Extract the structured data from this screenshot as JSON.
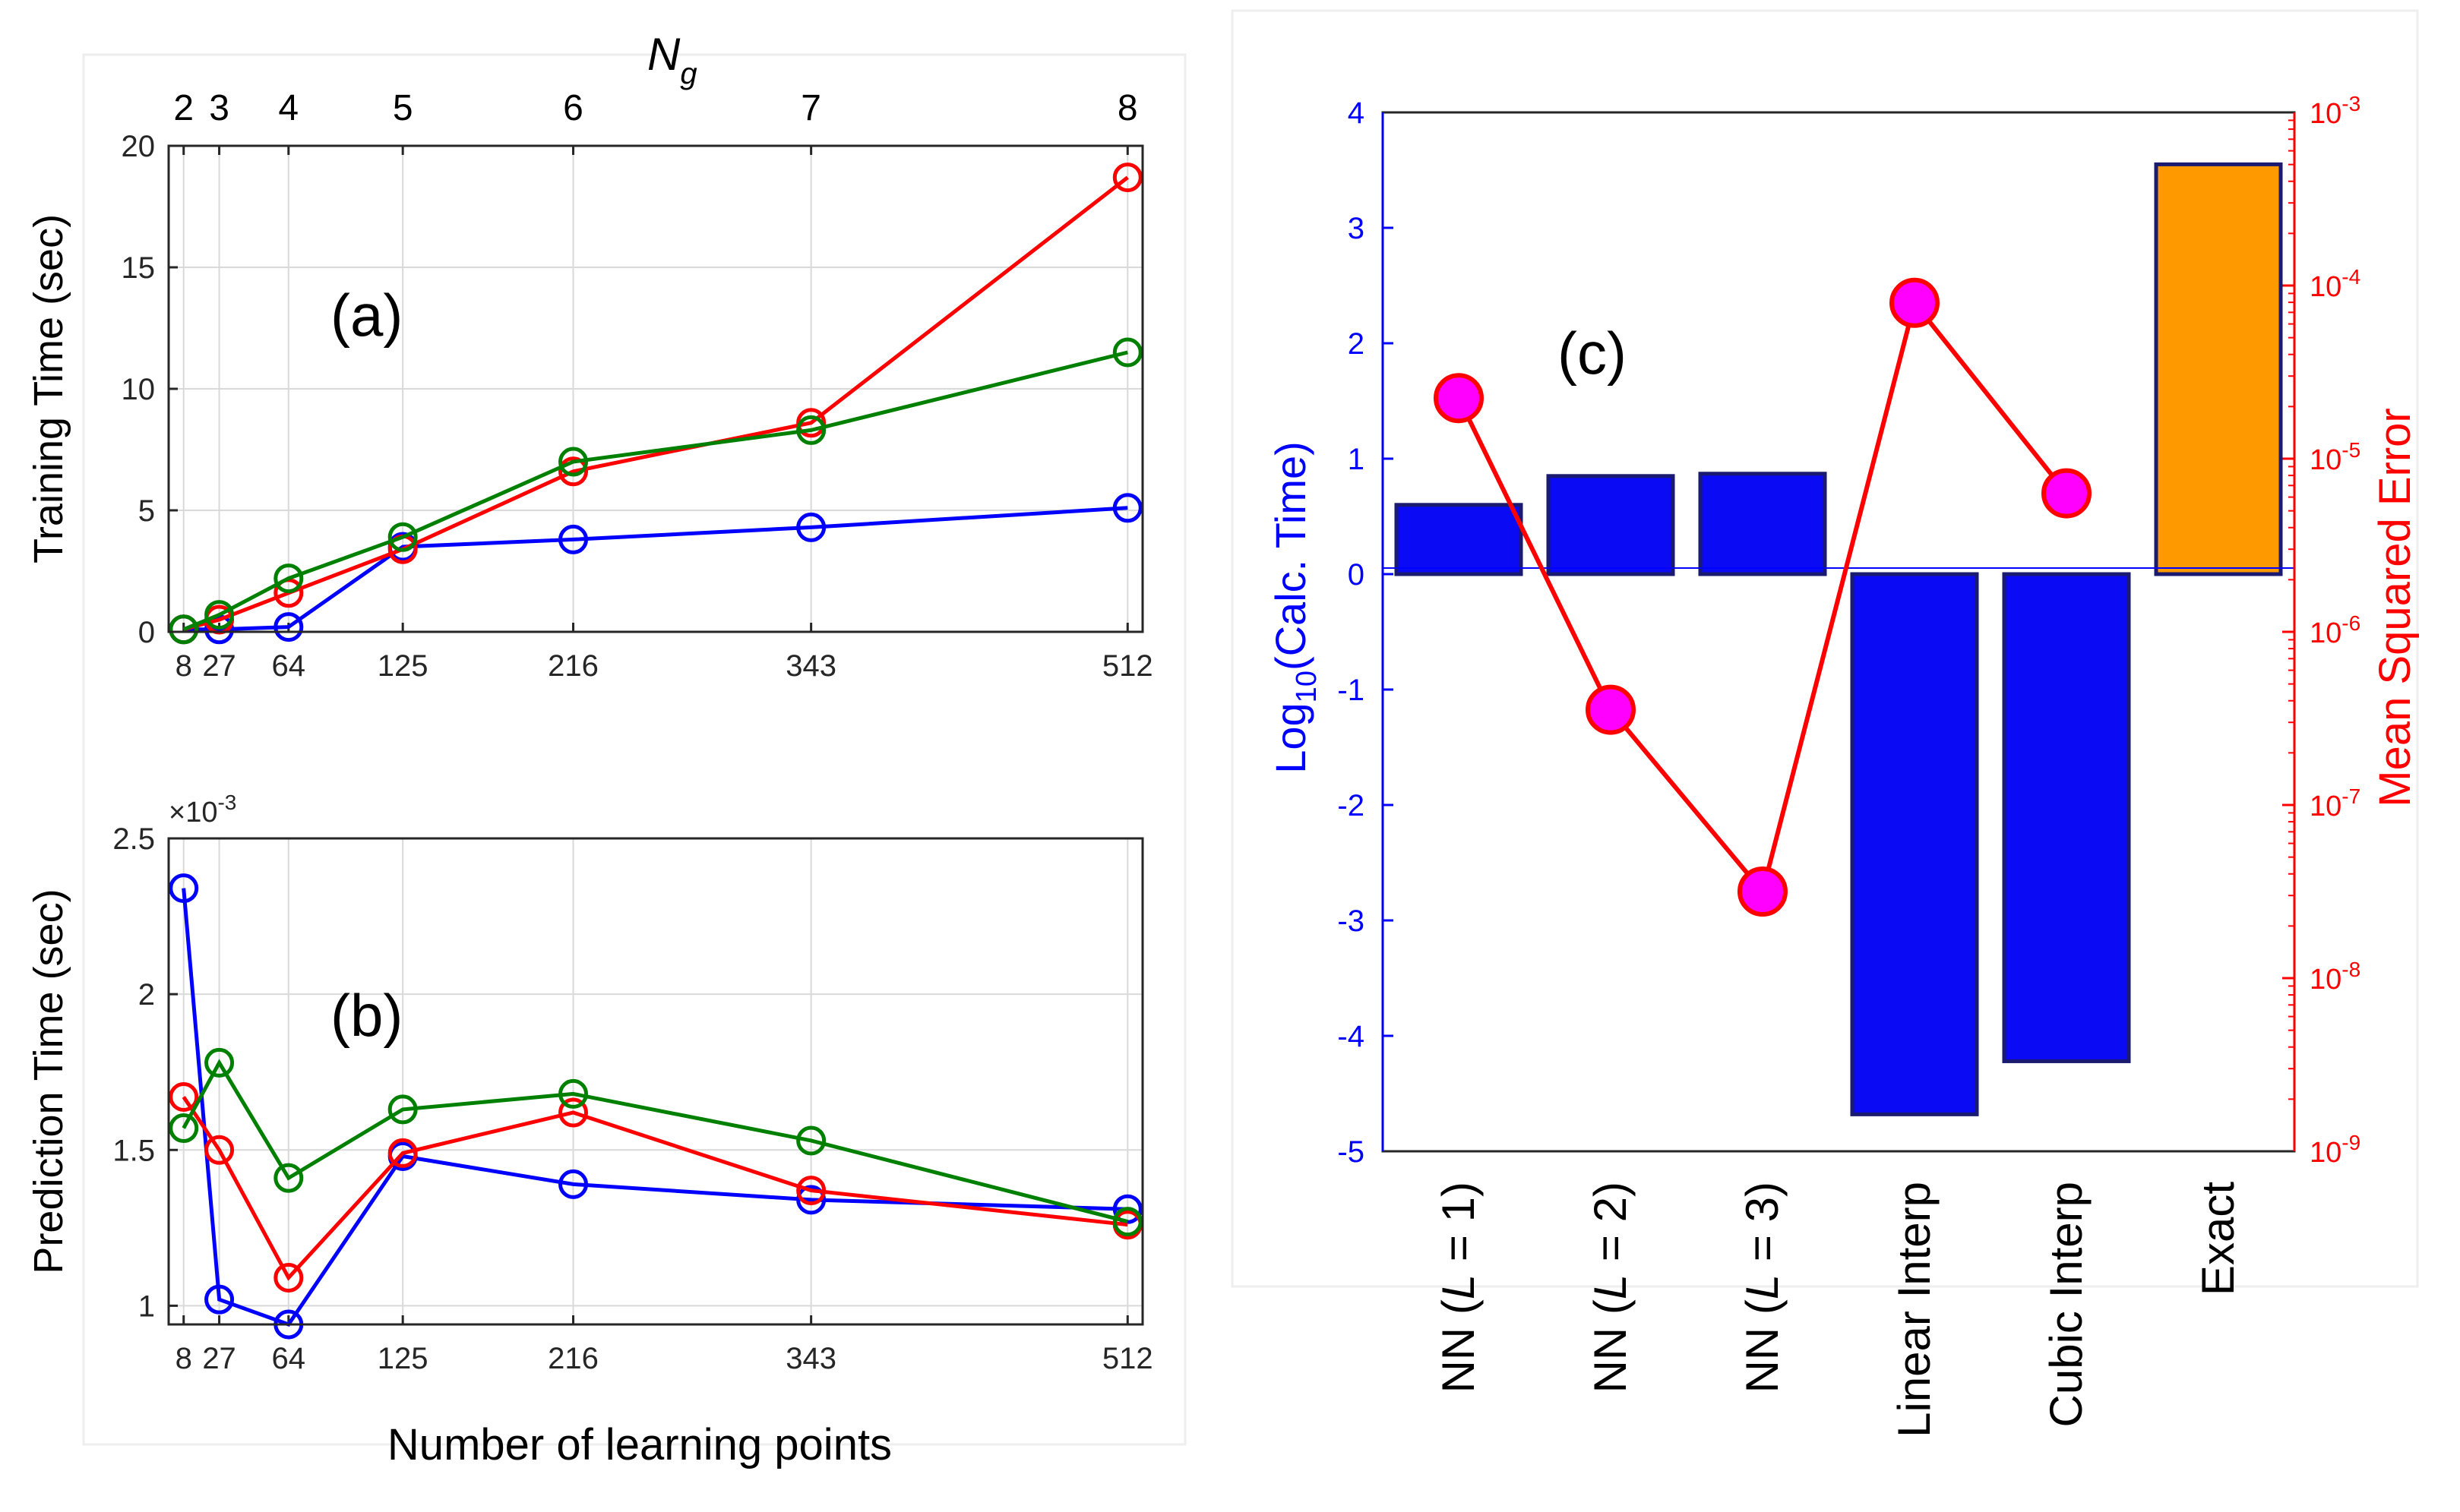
{
  "panel_a": {
    "label": "(a)",
    "top_axis_title": "N",
    "top_axis_sub": "g",
    "top_ticks": [
      "2",
      "3",
      "4",
      "5",
      "6",
      "7",
      "8"
    ]
  },
  "panel_b": {
    "label": "(b)",
    "exponent_base": "×10",
    "exponent_power": "-3"
  },
  "panel_c": {
    "label": "(c)",
    "ylabel_left_prefix": "Log",
    "ylabel_left_sub": "10",
    "ylabel_left_suffix": "(Calc. Time)",
    "ylabel_right": "Mean Squared Error",
    "right_ticks": [
      {
        "base": "10",
        "exp": "-3",
        "value": -3
      },
      {
        "base": "10",
        "exp": "-4",
        "value": -4
      },
      {
        "base": "10",
        "exp": "-5",
        "value": -5
      },
      {
        "base": "10",
        "exp": "-6",
        "value": -6
      },
      {
        "base": "10",
        "exp": "-7",
        "value": -7
      },
      {
        "base": "10",
        "exp": "-8",
        "value": -8
      },
      {
        "base": "10",
        "exp": "-9",
        "value": -9
      }
    ],
    "category_parts": [
      [
        "NN (",
        "L",
        " = 1)"
      ],
      [
        "NN (",
        "L",
        " = 2)"
      ],
      [
        "NN (",
        "L",
        " = 3)"
      ],
      [
        "Linear Interp"
      ],
      [
        "Cubic Interp"
      ],
      [
        "Exact"
      ]
    ]
  },
  "colors": {
    "blue": "#0000ff",
    "red": "#ff0000",
    "green": "#008000",
    "bar_blue": "#0a0af5",
    "bar_orange": "#ff9900",
    "bar_edge": "#1a1a70",
    "marker_fill": "#ff00ff",
    "grid": "#d9d9d9",
    "axis": "#262626"
  },
  "chart_data": [
    {
      "type": "line",
      "id": "a",
      "title": "",
      "xlabel": "",
      "ylabel": "Training Time (sec)",
      "x": [
        8,
        27,
        64,
        125,
        216,
        343,
        512
      ],
      "xticks": [
        "8",
        "27",
        "64",
        "125",
        "216",
        "343",
        "512"
      ],
      "xlim": [
        0,
        520
      ],
      "ylim": [
        0,
        20
      ],
      "yticks": [
        0,
        5,
        10,
        15,
        20
      ],
      "ytick_labels": [
        "0",
        "5",
        "10",
        "15",
        "20"
      ],
      "grid": true,
      "series": [
        {
          "name": "blue",
          "color": "#0000ff",
          "values": [
            0.1,
            0.1,
            0.2,
            3.5,
            3.8,
            4.3,
            5.1
          ]
        },
        {
          "name": "red",
          "color": "#ff0000",
          "values": [
            0.1,
            0.5,
            1.6,
            3.4,
            6.6,
            8.6,
            18.7
          ]
        },
        {
          "name": "green",
          "color": "#008000",
          "values": [
            0.1,
            0.7,
            2.2,
            3.9,
            7.0,
            8.3,
            11.5
          ]
        }
      ]
    },
    {
      "type": "line",
      "id": "b",
      "title": "",
      "xlabel": "Number of learning points",
      "ylabel": "Prediction Time (sec)",
      "x": [
        8,
        27,
        64,
        125,
        216,
        343,
        512
      ],
      "xticks": [
        "8",
        "27",
        "64",
        "125",
        "216",
        "343",
        "512"
      ],
      "xlim": [
        0,
        520
      ],
      "ylim": [
        0.94,
        2.5
      ],
      "yticks": [
        1,
        1.5,
        2,
        2.5
      ],
      "ytick_labels": [
        "1",
        "1.5",
        "2",
        "2.5"
      ],
      "scale_note": "×10^-3",
      "grid": true,
      "series": [
        {
          "name": "blue",
          "color": "#0000ff",
          "values": [
            2.34,
            1.02,
            0.94,
            1.48,
            1.39,
            1.34,
            1.31
          ]
        },
        {
          "name": "red",
          "color": "#ff0000",
          "values": [
            1.67,
            1.5,
            1.09,
            1.49,
            1.62,
            1.37,
            1.26
          ]
        },
        {
          "name": "green",
          "color": "#008000",
          "values": [
            1.57,
            1.78,
            1.41,
            1.63,
            1.68,
            1.53,
            1.27
          ]
        }
      ]
    },
    {
      "type": "bar",
      "id": "c",
      "title": "",
      "categories": [
        "NN (L = 1)",
        "NN (L = 2)",
        "NN (L = 3)",
        "Linear Interp",
        "Cubic Interp",
        "Exact"
      ],
      "ylabel": "Log10(Calc. Time)",
      "ylim": [
        -5,
        4
      ],
      "yticks": [
        -5,
        -4,
        -3,
        -2,
        -1,
        0,
        1,
        2,
        3,
        4
      ],
      "ytick_labels": [
        "-5",
        "-4",
        "-3",
        "-2",
        "-1",
        "0",
        "1",
        "2",
        "3",
        "4"
      ],
      "values": [
        0.6,
        0.85,
        0.87,
        -4.68,
        -4.22,
        3.55
      ],
      "bar_colors": [
        "#0a0af5",
        "#0a0af5",
        "#0a0af5",
        "#0a0af5",
        "#0a0af5",
        "#ff9900"
      ],
      "secondary": {
        "type": "line",
        "name": "Mean Squared Error",
        "ylabel": "Mean Squared Error",
        "log_ylim": [
          -9,
          -3
        ],
        "log10_values": [
          -4.65,
          -6.45,
          -7.5,
          -4.1,
          -5.2,
          null
        ]
      }
    }
  ]
}
